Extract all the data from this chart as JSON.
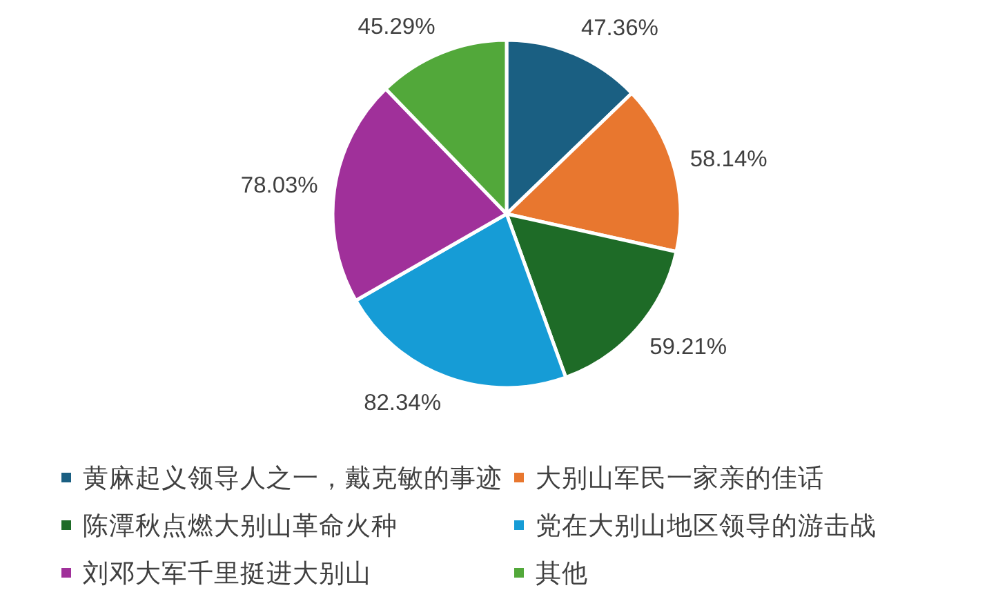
{
  "chart_data": {
    "type": "pie",
    "categories": [
      "黄麻起义领导人之一，戴克敏的事迹",
      "大别山军民一家亲的佳话",
      "陈潭秋点燃大别山革命火种",
      "党在大别山地区领导的游击战",
      "刘邓大军千里挺进大别山",
      "其他"
    ],
    "values": [
      47.36,
      58.14,
      59.21,
      82.34,
      78.03,
      45.29
    ],
    "colors": [
      "#1a5f82",
      "#e8772f",
      "#1e6b27",
      "#169cd6",
      "#a0309a",
      "#52a83a"
    ],
    "value_labels": [
      "47.36%",
      "58.14%",
      "59.21%",
      "82.34%",
      "78.03%",
      "45.29%"
    ],
    "legend": "bottom"
  }
}
